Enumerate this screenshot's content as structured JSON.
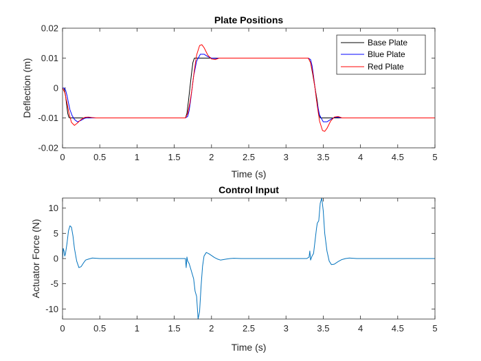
{
  "colors": {
    "background": "#ffffff",
    "axes": "#262626",
    "base_plate": "#000000",
    "blue_plate": "#0000ff",
    "red_plate": "#ff0000",
    "control_input": "#0072bd"
  },
  "chart_data": [
    {
      "type": "line",
      "title": "Plate Positions",
      "xlabel": "Time (s)",
      "ylabel": "Deflection (m)",
      "xlim": [
        0,
        5
      ],
      "ylim": [
        -0.02,
        0.02
      ],
      "xticks": [
        0,
        0.5,
        1,
        1.5,
        2,
        2.5,
        3,
        3.5,
        4,
        4.5,
        5
      ],
      "xtick_labels": [
        "0",
        "0.5",
        "1",
        "1.5",
        "2",
        "2.5",
        "3",
        "3.5",
        "4",
        "4.5",
        "5"
      ],
      "yticks": [
        -0.02,
        -0.01,
        0,
        0.01,
        0.02
      ],
      "ytick_labels": [
        "-0.02",
        "-0.01",
        "0",
        "0.01",
        "0.02"
      ],
      "grid": false,
      "legend": "top-right",
      "series": [
        {
          "name": "Base Plate",
          "color": "#000000",
          "x": [
            0,
            0.02,
            0.04,
            0.055,
            0.07,
            0.085,
            0.1,
            1.65,
            1.67,
            1.69,
            1.71,
            1.73,
            1.75,
            1.77,
            3.3,
            3.33,
            3.36,
            3.39,
            3.42,
            3.44,
            3.46,
            5
          ],
          "y": [
            0,
            0,
            -0.0025,
            -0.0055,
            -0.0085,
            -0.0098,
            -0.01,
            -0.01,
            -0.0085,
            -0.0045,
            0,
            0.0045,
            0.0085,
            0.01,
            0.01,
            0.0085,
            0.0045,
            0,
            -0.0045,
            -0.0085,
            -0.01,
            -0.01
          ]
        },
        {
          "name": "Blue Plate",
          "color": "#0000ff",
          "x": [
            0,
            0.02,
            0.04,
            0.06,
            0.08,
            0.1,
            0.13,
            0.16,
            0.2,
            0.25,
            0.3,
            0.35,
            0.4,
            0.5,
            1.65,
            1.68,
            1.7,
            1.72,
            1.74,
            1.76,
            1.8,
            1.85,
            1.9,
            1.95,
            2.0,
            2.05,
            2.1,
            2.2,
            3.3,
            3.33,
            3.35,
            3.37,
            3.39,
            3.41,
            3.45,
            3.5,
            3.55,
            3.6,
            3.65,
            3.7,
            3.75,
            3.85,
            5
          ],
          "y": [
            0,
            0,
            -0.0006,
            -0.0025,
            -0.005,
            -0.0073,
            -0.0093,
            -0.0105,
            -0.0113,
            -0.0108,
            -0.0101,
            -0.0099,
            -0.01,
            -0.01,
            -0.01,
            -0.0095,
            -0.0075,
            -0.004,
            0.0,
            0.004,
            0.009,
            0.0113,
            0.0113,
            0.0105,
            0.01,
            0.0099,
            0.01,
            0.01,
            0.01,
            0.0095,
            0.0075,
            0.004,
            0.0,
            -0.004,
            -0.009,
            -0.0113,
            -0.0113,
            -0.0105,
            -0.0098,
            -0.0098,
            -0.01,
            -0.01,
            -0.01
          ]
        },
        {
          "name": "Red Plate",
          "color": "#ff0000",
          "x": [
            0,
            0.03,
            0.06,
            0.09,
            0.12,
            0.16,
            0.2,
            0.25,
            0.3,
            0.35,
            0.4,
            0.45,
            0.5,
            1.65,
            1.68,
            1.71,
            1.74,
            1.77,
            1.8,
            1.84,
            1.87,
            1.9,
            1.95,
            2.0,
            2.05,
            2.1,
            2.2,
            3.3,
            3.33,
            3.36,
            3.39,
            3.42,
            3.45,
            3.49,
            3.52,
            3.55,
            3.6,
            3.65,
            3.7,
            3.75,
            3.85,
            5
          ],
          "y": [
            0,
            -0.0015,
            -0.005,
            -0.0088,
            -0.0115,
            -0.0125,
            -0.0117,
            -0.0105,
            -0.0098,
            -0.0097,
            -0.0099,
            -0.01,
            -0.01,
            -0.01,
            -0.0085,
            -0.005,
            0.0,
            0.006,
            0.011,
            0.0142,
            0.0145,
            0.0135,
            0.011,
            0.0097,
            0.0095,
            0.01,
            0.01,
            0.01,
            0.0085,
            0.005,
            0.0,
            -0.006,
            -0.011,
            -0.0142,
            -0.0145,
            -0.0135,
            -0.011,
            -0.0097,
            -0.0095,
            -0.01,
            -0.01,
            -0.01
          ]
        }
      ]
    },
    {
      "type": "line",
      "title": "Control Input",
      "xlabel": "Time (s)",
      "ylabel": "Actuator Force (N)",
      "xlim": [
        0,
        5
      ],
      "ylim": [
        -12,
        12
      ],
      "xticks": [
        0,
        0.5,
        1,
        1.5,
        2,
        2.5,
        3,
        3.5,
        4,
        4.5,
        5
      ],
      "xtick_labels": [
        "0",
        "0.5",
        "1",
        "1.5",
        "2",
        "2.5",
        "3",
        "3.5",
        "4",
        "4.5",
        "5"
      ],
      "yticks": [
        -10,
        -5,
        0,
        5,
        10
      ],
      "ytick_labels": [
        "-10",
        "-5",
        "0",
        "5",
        "10"
      ],
      "grid": false,
      "series": [
        {
          "color": "#0072bd",
          "x": [
            0,
            0.01,
            0.02,
            0.03,
            0.04,
            0.06,
            0.08,
            0.1,
            0.12,
            0.14,
            0.16,
            0.19,
            0.22,
            0.25,
            0.28,
            0.31,
            0.35,
            0.4,
            0.5,
            1.0,
            1.62,
            1.65,
            1.66,
            1.67,
            1.68,
            1.7,
            1.72,
            1.74,
            1.75,
            1.76,
            1.78,
            1.8,
            1.82,
            1.84,
            1.86,
            1.88,
            1.9,
            1.93,
            1.96,
            2.0,
            2.04,
            2.08,
            2.12,
            2.16,
            2.2,
            2.25,
            2.3,
            2.4,
            2.5,
            3.0,
            3.28,
            3.31,
            3.32,
            3.33,
            3.35,
            3.37,
            3.39,
            3.41,
            3.42,
            3.44,
            3.46,
            3.48,
            3.5,
            3.52,
            3.55,
            3.58,
            3.61,
            3.65,
            3.7,
            3.75,
            3.8,
            3.85,
            3.9,
            3.95,
            4.0,
            5.0
          ],
          "y": [
            0,
            2,
            1.5,
            0.5,
            1.0,
            3.0,
            5.5,
            6.5,
            6.2,
            4.5,
            2.0,
            -0.5,
            -1.8,
            -1.6,
            -0.9,
            -0.3,
            -0.1,
            0.1,
            0,
            0,
            0,
            0,
            -1.8,
            0.3,
            -0.5,
            -1.0,
            -2.0,
            -3.0,
            -3.5,
            -4.0,
            -6.5,
            -7.5,
            -12.0,
            -10.5,
            -5.5,
            -1.5,
            0.5,
            1.2,
            1.0,
            0.6,
            0.2,
            -0.1,
            -0.3,
            -0.2,
            -0.1,
            0,
            0.05,
            0,
            0,
            0,
            0,
            0.3,
            1.5,
            -0.3,
            0.5,
            1.0,
            3.5,
            6.0,
            7.0,
            7.5,
            11.0,
            12.0,
            9.5,
            5.0,
            1.5,
            -0.5,
            -1.2,
            -1.1,
            -0.6,
            -0.2,
            0.0,
            0.1,
            0.05,
            0,
            0,
            0
          ]
        }
      ]
    }
  ]
}
